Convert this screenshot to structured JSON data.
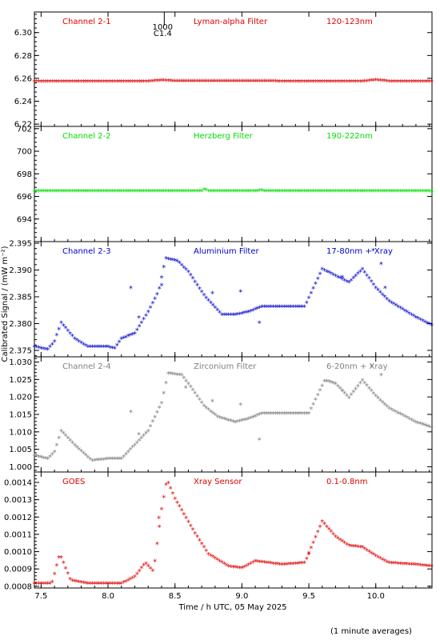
{
  "chart_data": {
    "type": "scatter",
    "xlabel": "Time / h UTC, 05 May 2025",
    "ylabel": "Calibrated Signal / (mW m⁻²)",
    "footnote": "(1 minute averages)",
    "xlim": [
      7.45,
      10.42
    ],
    "xticks": [
      "7.5",
      "8.0",
      "8.5",
      "9.0",
      "9.5",
      "10.0"
    ],
    "x_tick_values": [
      7.5,
      8.0,
      8.5,
      9.0,
      9.5,
      10.0
    ],
    "marker_annotation": {
      "x": 8.42,
      "labels": [
        "1000",
        "C1.4"
      ]
    },
    "panels": [
      {
        "labels": [
          "Channel 2-1",
          "Lyman-alpha Filter",
          "120-123nm"
        ],
        "color": "#dd0000",
        "ylim": [
          6.218,
          6.318
        ],
        "yticks": [
          "6.22",
          "6.24",
          "6.26",
          "6.28",
          "6.30"
        ],
        "ytick_values": [
          6.22,
          6.24,
          6.26,
          6.28,
          6.3
        ],
        "anchors": [
          [
            7.45,
            6.2565
          ],
          [
            8.3,
            6.2565
          ],
          [
            8.4,
            6.2575
          ],
          [
            8.5,
            6.2568
          ],
          [
            9.9,
            6.2565
          ],
          [
            10.0,
            6.2578
          ],
          [
            10.1,
            6.2566
          ],
          [
            10.42,
            6.2565
          ]
        ],
        "outliers": []
      },
      {
        "labels": [
          "Channel 2-2",
          "Herzberg Filter",
          "190-222nm"
        ],
        "color": "#00dd00",
        "ylim": [
          692.0,
          702.2
        ],
        "yticks": [
          "694",
          "696",
          "698",
          "700",
          "702"
        ],
        "ytick_values": [
          694,
          696,
          698,
          700,
          702
        ],
        "anchors": [
          [
            7.45,
            696.4
          ],
          [
            8.7,
            696.4
          ],
          [
            8.72,
            696.55
          ],
          [
            8.75,
            696.4
          ],
          [
            9.12,
            696.4
          ],
          [
            9.14,
            696.5
          ],
          [
            9.16,
            696.4
          ],
          [
            10.42,
            696.4
          ]
        ],
        "outliers": [
          [
            10.42,
            696.25
          ]
        ]
      },
      {
        "labels": [
          "Channel 2-3",
          "Aluminium Filter",
          "17-80nm + Xray"
        ],
        "color": "#0000cc",
        "ylim": [
          2.3738,
          2.3953
        ],
        "yticks": [
          "2.375",
          "2.380",
          "2.385",
          "2.390",
          "2.395"
        ],
        "ytick_values": [
          2.375,
          2.38,
          2.385,
          2.39,
          2.395
        ],
        "anchors": [
          [
            7.45,
            2.3755
          ],
          [
            7.55,
            2.375
          ],
          [
            7.6,
            2.3765
          ],
          [
            7.65,
            2.38
          ],
          [
            7.75,
            2.377
          ],
          [
            7.85,
            2.3755
          ],
          [
            8.0,
            2.3755
          ],
          [
            8.05,
            2.3752
          ],
          [
            8.1,
            2.377
          ],
          [
            8.2,
            2.378
          ],
          [
            8.3,
            2.382
          ],
          [
            8.38,
            2.386
          ],
          [
            8.43,
            2.392
          ],
          [
            8.52,
            2.3915
          ],
          [
            8.6,
            2.3895
          ],
          [
            8.72,
            2.385
          ],
          [
            8.85,
            2.3815
          ],
          [
            8.95,
            2.3815
          ],
          [
            9.05,
            2.382
          ],
          [
            9.15,
            2.383
          ],
          [
            9.3,
            2.383
          ],
          [
            9.47,
            2.383
          ],
          [
            9.6,
            2.39
          ],
          [
            9.68,
            2.389
          ],
          [
            9.8,
            2.3875
          ],
          [
            9.9,
            2.39
          ],
          [
            10.0,
            2.3865
          ],
          [
            10.1,
            2.384
          ],
          [
            10.3,
            2.381
          ],
          [
            10.42,
            2.3795
          ]
        ],
        "outliers": [
          [
            8.17,
            2.3865
          ],
          [
            8.23,
            2.381
          ],
          [
            8.4,
            2.387
          ],
          [
            8.78,
            2.3855
          ],
          [
            8.99,
            2.3858
          ],
          [
            9.13,
            2.38
          ],
          [
            9.75,
            2.3885
          ],
          [
            9.98,
            2.3935
          ],
          [
            10.04,
            2.391
          ],
          [
            10.07,
            2.3865
          ]
        ]
      },
      {
        "labels": [
          "Channel 2-4",
          "Zirconium Filter",
          "6-20nm + Xray"
        ],
        "color": "#808080",
        "ylim": [
          0.9985,
          1.0315
        ],
        "yticks": [
          "1.000",
          "1.005",
          "1.010",
          "1.015",
          "1.020",
          "1.025",
          "1.030"
        ],
        "ytick_values": [
          1.0,
          1.005,
          1.01,
          1.015,
          1.02,
          1.025,
          1.03
        ],
        "anchors": [
          [
            7.45,
            1.003
          ],
          [
            7.55,
            1.002
          ],
          [
            7.6,
            1.004
          ],
          [
            7.65,
            1.01
          ],
          [
            7.75,
            1.006
          ],
          [
            7.88,
            1.0015
          ],
          [
            8.0,
            1.002
          ],
          [
            8.1,
            1.002
          ],
          [
            8.3,
            1.01
          ],
          [
            8.4,
            1.018
          ],
          [
            8.45,
            1.0265
          ],
          [
            8.55,
            1.026
          ],
          [
            8.62,
            1.0225
          ],
          [
            8.72,
            1.017
          ],
          [
            8.82,
            1.014
          ],
          [
            8.95,
            1.0125
          ],
          [
            9.05,
            1.0135
          ],
          [
            9.15,
            1.015
          ],
          [
            9.3,
            1.015
          ],
          [
            9.5,
            1.015
          ],
          [
            9.55,
            1.019
          ],
          [
            9.62,
            1.0245
          ],
          [
            9.7,
            1.0235
          ],
          [
            9.8,
            1.0195
          ],
          [
            9.9,
            1.0245
          ],
          [
            10.0,
            1.02
          ],
          [
            10.1,
            1.0165
          ],
          [
            10.3,
            1.0125
          ],
          [
            10.42,
            1.011
          ]
        ],
        "outliers": [
          [
            8.17,
            1.0155
          ],
          [
            8.23,
            1.009
          ],
          [
            8.58,
            1.0225
          ],
          [
            8.78,
            1.0185
          ],
          [
            8.99,
            1.0175
          ],
          [
            9.13,
            1.0075
          ],
          [
            9.75,
            1.0215
          ],
          [
            9.97,
            1.0285
          ],
          [
            10.04,
            1.026
          ]
        ]
      },
      {
        "labels": [
          "GOES",
          "Xray Sensor",
          "0.1-0.8nm"
        ],
        "color": "#dd0000",
        "ylim": [
          0.00079,
          0.00146
        ],
        "yticks": [
          "0.0008",
          "0.0009",
          "0.0010",
          "0.0011",
          "0.0012",
          "0.0013",
          "0.0014"
        ],
        "ytick_values": [
          0.0008,
          0.0009,
          0.001,
          0.0011,
          0.0012,
          0.0013,
          0.0014
        ],
        "anchors": [
          [
            7.45,
            0.00081
          ],
          [
            7.58,
            0.00081
          ],
          [
            7.64,
            0.00098
          ],
          [
            7.72,
            0.00083
          ],
          [
            7.85,
            0.00081
          ],
          [
            8.1,
            0.00081
          ],
          [
            8.2,
            0.00085
          ],
          [
            8.28,
            0.00093
          ],
          [
            8.34,
            0.00088
          ],
          [
            8.4,
            0.00124
          ],
          [
            8.44,
            0.00141
          ],
          [
            8.5,
            0.0013
          ],
          [
            8.65,
            0.0011
          ],
          [
            8.75,
            0.00098
          ],
          [
            8.9,
            0.00091
          ],
          [
            9.0,
            0.0009
          ],
          [
            9.1,
            0.00094
          ],
          [
            9.2,
            0.00093
          ],
          [
            9.3,
            0.00092
          ],
          [
            9.47,
            0.00093
          ],
          [
            9.6,
            0.00117
          ],
          [
            9.7,
            0.00108
          ],
          [
            9.8,
            0.00103
          ],
          [
            9.9,
            0.00102
          ],
          [
            10.0,
            0.00097
          ],
          [
            10.1,
            0.00093
          ],
          [
            10.3,
            0.00092
          ],
          [
            10.42,
            0.00091
          ]
        ],
        "outliers": [
          [
            8.38,
            0.00119
          ],
          [
            9.5,
            0.00098
          ]
        ]
      }
    ]
  }
}
